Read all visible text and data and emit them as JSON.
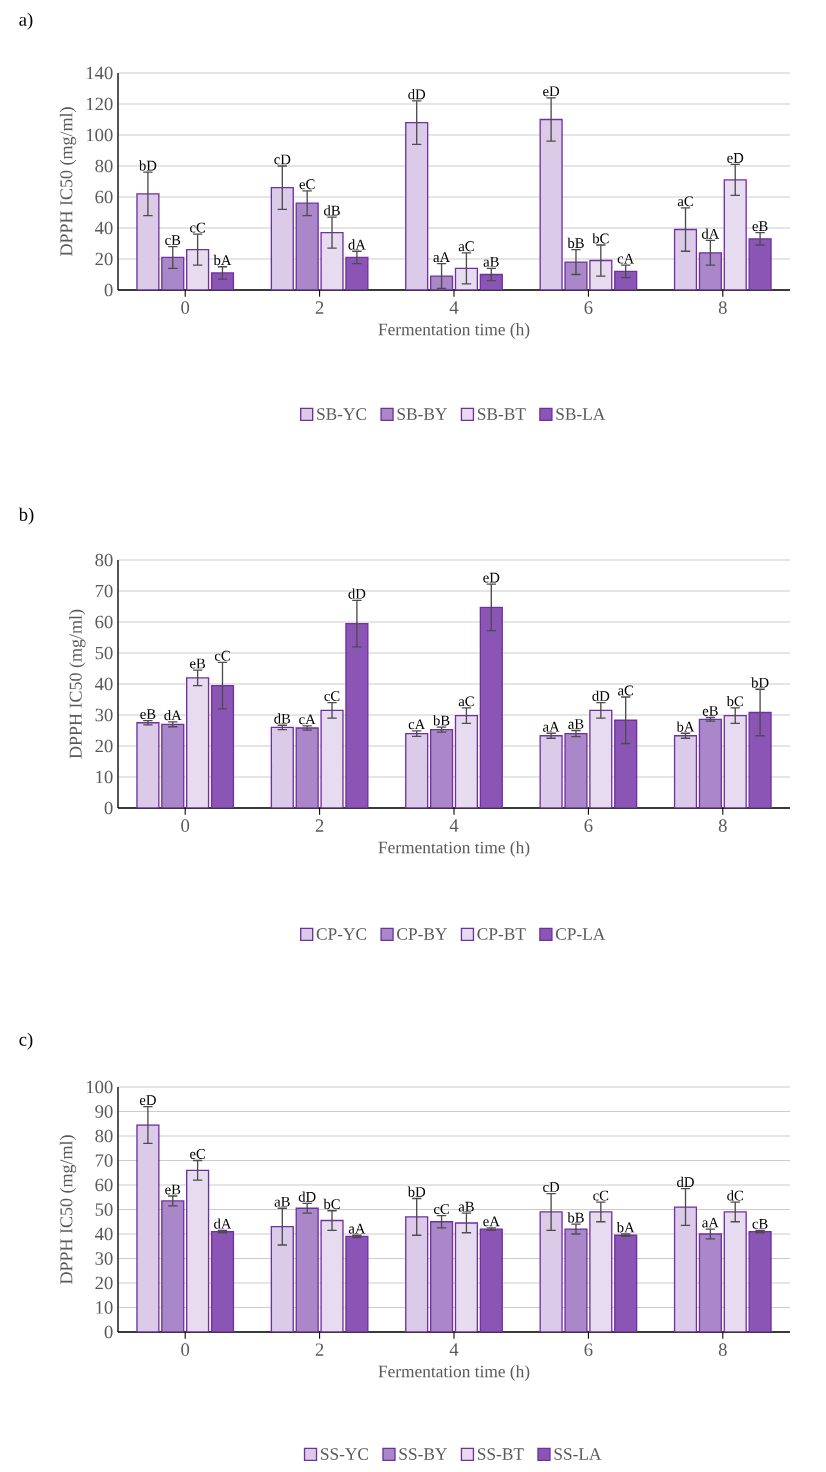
{
  "chart_data": [
    {
      "type": "bar",
      "title": "a)",
      "xlabel": "Fermentation time (h)",
      "ylabel": "DPPH IC50 (mg/ml)",
      "categories": [
        "0",
        "2",
        "4",
        "6",
        "8"
      ],
      "ylim": [
        0,
        140
      ],
      "yticks": [
        0,
        20,
        40,
        60,
        80,
        100,
        120,
        140
      ],
      "grid": "y",
      "legend": "bottom",
      "series": [
        {
          "name": "SB-YC",
          "color": "#dccbe8",
          "values": [
            62,
            66,
            108,
            110,
            39
          ],
          "errors": [
            14,
            14,
            14,
            14,
            14
          ],
          "value_labels": [
            "bD",
            "cD",
            "dD",
            "eD",
            "aC"
          ]
        },
        {
          "name": "SB-BY",
          "color": "#a987c8",
          "values": [
            21,
            56,
            9,
            18,
            24
          ],
          "errors": [
            7,
            8,
            8,
            8,
            8
          ],
          "value_labels": [
            "cB",
            "eC",
            "aA",
            "bB",
            "dA"
          ]
        },
        {
          "name": "SB-BT",
          "color": "#e6dbef",
          "values": [
            26,
            37,
            14,
            19,
            71
          ],
          "errors": [
            10,
            10,
            10,
            10,
            10
          ],
          "value_labels": [
            "cC",
            "dB",
            "aC",
            "bC",
            "eD"
          ]
        },
        {
          "name": "SB-LA",
          "color": "#8a55b4",
          "values": [
            11,
            21,
            10,
            12,
            33
          ],
          "errors": [
            4,
            4,
            4,
            4,
            4
          ],
          "value_labels": [
            "bA",
            "dA",
            "aB",
            "cA",
            "eB"
          ]
        }
      ]
    },
    {
      "type": "bar",
      "title": "b)",
      "xlabel": "Fermentation time (h)",
      "ylabel": "DPPH IC50 (mg/ml)",
      "categories": [
        "0",
        "2",
        "4",
        "6",
        "8"
      ],
      "ylim": [
        0,
        80
      ],
      "yticks": [
        0,
        10,
        20,
        30,
        40,
        50,
        60,
        70,
        80
      ],
      "grid": "y",
      "legend": "bottom",
      "series": [
        {
          "name": "CP-YC",
          "color": "#dccbe8",
          "values": [
            27.5,
            26,
            24,
            23.3,
            23.3
          ],
          "errors": [
            0.7,
            0.7,
            0.9,
            0.8,
            0.8
          ],
          "value_labels": [
            "eB",
            "dB",
            "cA",
            "aA",
            "bA"
          ]
        },
        {
          "name": "CP-BY",
          "color": "#a987c8",
          "values": [
            27,
            25.8,
            25.3,
            24,
            28.6
          ],
          "errors": [
            0.8,
            0.7,
            0.8,
            1,
            0.6
          ],
          "value_labels": [
            "dA",
            "cA",
            "bB",
            "aB",
            "eB"
          ]
        },
        {
          "name": "CP-BT",
          "color": "#e6dbef",
          "values": [
            42,
            31.5,
            29.8,
            31.5,
            29.8
          ],
          "errors": [
            2.5,
            2.5,
            2.5,
            2.5,
            2.5
          ],
          "value_labels": [
            "eB",
            "cC",
            "aC",
            "dD",
            "bC"
          ]
        },
        {
          "name": "CP-LA",
          "color": "#8a55b4",
          "values": [
            39.5,
            59.5,
            64.7,
            28.3,
            30.8
          ],
          "errors": [
            7.5,
            7.5,
            7.5,
            7.5,
            7.5
          ],
          "value_labels": [
            "cC",
            "dD",
            "eD",
            "aC",
            "bD"
          ]
        }
      ]
    },
    {
      "type": "bar",
      "title": "c)",
      "xlabel": "Fermentation time (h)",
      "ylabel": "DPPH IC50 (mg/ml)",
      "categories": [
        "0",
        "2",
        "4",
        "6",
        "8"
      ],
      "ylim": [
        0,
        100
      ],
      "yticks": [
        0,
        10,
        20,
        30,
        40,
        50,
        60,
        70,
        80,
        90,
        100
      ],
      "grid": "y",
      "legend": "bottom",
      "series": [
        {
          "name": "SS-YC",
          "color": "#dccbe8",
          "values": [
            84.5,
            43,
            47,
            49,
            51
          ],
          "errors": [
            7.5,
            7.5,
            7.5,
            7.5,
            7.5
          ],
          "value_labels": [
            "eD",
            "aB",
            "bD",
            "cD",
            "dD"
          ]
        },
        {
          "name": "SS-BY",
          "color": "#a987c8",
          "values": [
            53.5,
            50.5,
            45,
            42,
            40
          ],
          "errors": [
            2,
            2,
            2.5,
            2,
            2
          ],
          "value_labels": [
            "eB",
            "dD",
            "cC",
            "bB",
            "aA"
          ]
        },
        {
          "name": "SS-BT",
          "color": "#e6dbef",
          "values": [
            66,
            45.5,
            44.5,
            49,
            49
          ],
          "errors": [
            4,
            4,
            4,
            4,
            4
          ],
          "value_labels": [
            "eC",
            "bC",
            "aB",
            "cC",
            "dC"
          ]
        },
        {
          "name": "SS-LA",
          "color": "#8a55b4",
          "values": [
            41,
            39,
            42,
            39.5,
            41
          ],
          "errors": [
            0.5,
            0.5,
            0.5,
            0.5,
            0.5
          ],
          "value_labels": [
            "dA",
            "aA",
            "eA",
            "bA",
            "cB"
          ]
        }
      ]
    }
  ]
}
